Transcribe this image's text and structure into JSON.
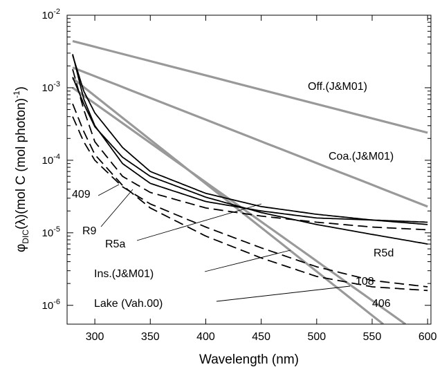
{
  "chart_data": {
    "type": "line",
    "title": "",
    "xlabel": "Wavelength (nm)",
    "ylabel": {
      "prefix": "φ",
      "sub": "DIC",
      "mid": "(λ)(mol C (mol photon)",
      "sup": "-1",
      "suffix": ")"
    },
    "xlim": [
      275,
      603
    ],
    "ylim": [
      5.5e-07,
      0.01
    ],
    "yscale": "log",
    "grid": false,
    "legend": "none",
    "x_ticks": [
      "300",
      "350",
      "400",
      "450",
      "500",
      "550",
      "600"
    ],
    "x_tick_values": [
      300,
      350,
      400,
      450,
      500,
      550,
      600
    ],
    "y_ticks": [
      {
        "base": "10",
        "exp": "-6",
        "value": 1e-06
      },
      {
        "base": "10",
        "exp": "-5",
        "value": 1e-05
      },
      {
        "base": "10",
        "exp": "-4",
        "value": 0.0001
      },
      {
        "base": "10",
        "exp": "-3",
        "value": 0.001
      },
      {
        "base": "10",
        "exp": "-2",
        "value": 0.01
      }
    ],
    "colors": {
      "black": "#000000",
      "gray": "#999999"
    },
    "series": [
      {
        "name": "Off.(J&M01)",
        "color": "#999999",
        "style": "solid",
        "x": [
          280,
          600
        ],
        "y": [
          0.0044,
          0.00024
        ]
      },
      {
        "name": "Coa.(J&M01)",
        "color": "#999999",
        "style": "solid",
        "x": [
          280,
          600
        ],
        "y": [
          0.0019,
          2.3e-05
        ]
      },
      {
        "name": "Ins.(J&M01)",
        "color": "#999999",
        "style": "solid",
        "x": [
          280,
          580
        ],
        "y": [
          0.001,
          5.5e-07
        ]
      },
      {
        "name": "Lake (Vah.00)",
        "color": "#999999",
        "style": "solid",
        "x": [
          280,
          560
        ],
        "y": [
          0.00135,
          5.5e-07
        ]
      },
      {
        "name": "R9",
        "color": "#000000",
        "style": "solid",
        "x": [
          280,
          290,
          300,
          325,
          350,
          400,
          450,
          500,
          550,
          600
        ],
        "y": [
          0.0028,
          0.0009,
          0.00045,
          0.00015,
          7e-05,
          3.5e-05,
          2.3e-05,
          1.8e-05,
          1.5e-05,
          1.3e-05
        ]
      },
      {
        "name": "R5a",
        "color": "#000000",
        "style": "solid",
        "x": [
          280,
          290,
          300,
          325,
          350,
          400,
          450,
          500,
          550,
          600
        ],
        "y": [
          0.0029,
          0.0007,
          0.0003,
          9e-05,
          4.8e-05,
          2.7e-05,
          2e-05,
          1.6e-05,
          1.5e-05,
          1.4e-05
        ]
      },
      {
        "name": "R5d",
        "color": "#000000",
        "style": "solid",
        "x": [
          280,
          290,
          300,
          325,
          350,
          400,
          450,
          500,
          550,
          600
        ],
        "y": [
          0.0014,
          0.0006,
          0.00029,
          0.00011,
          6e-05,
          3.1e-05,
          1.9e-05,
          1.3e-05,
          9.5e-06,
          7e-06
        ]
      },
      {
        "name": "409",
        "color": "#000000",
        "style": "dashed",
        "x": [
          280,
          290,
          300,
          325,
          350,
          400,
          450,
          500,
          550,
          600
        ],
        "y": [
          0.0018,
          0.0005,
          0.00018,
          6e-05,
          3.6e-05,
          2.2e-05,
          1.7e-05,
          1.4e-05,
          1.2e-05,
          1.1e-05
        ]
      },
      {
        "name": "406",
        "color": "#000000",
        "style": "dashed",
        "x": [
          280,
          290,
          300,
          325,
          350,
          400,
          450,
          500,
          550,
          600
        ],
        "y": [
          0.0006,
          0.00025,
          0.00012,
          4.5e-05,
          2.2e-05,
          9e-06,
          4.5e-06,
          2.5e-06,
          1.8e-06,
          1.6e-06
        ]
      },
      {
        "name": "108",
        "color": "#000000",
        "style": "dashed",
        "x": [
          280,
          290,
          300,
          325,
          350,
          400,
          450,
          500,
          550,
          600
        ],
        "y": [
          0.0004,
          0.00018,
          0.0001,
          4.3e-05,
          2.5e-05,
          1.2e-05,
          6.2e-06,
          3.4e-06,
          2.2e-06,
          1.8e-06
        ]
      }
    ],
    "annotations": [
      {
        "label": "Off.(J&M01)"
      },
      {
        "label": "Coa.(J&M01)"
      },
      {
        "label": "409"
      },
      {
        "label": "R9"
      },
      {
        "label": "R5a"
      },
      {
        "label": "R5d"
      },
      {
        "label": "Ins.(J&M01)"
      },
      {
        "label": "108"
      },
      {
        "label": "Lake (Vah.00)"
      },
      {
        "label": "406"
      }
    ]
  }
}
